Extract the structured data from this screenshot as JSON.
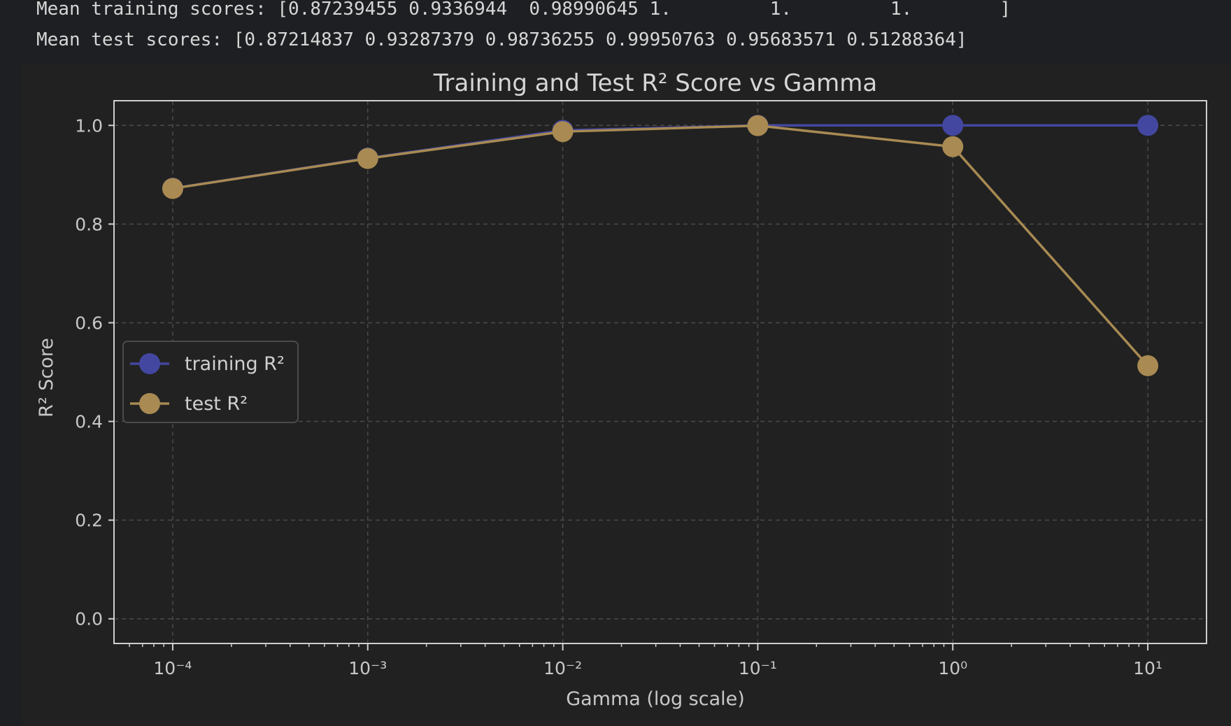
{
  "output": {
    "line1": "Mean training scores: [0.87239455 0.9336944  0.98990645 1.         1.         1.        ]",
    "line2": "Mean test scores: [0.87214837 0.93287379 0.98736255 0.99950763 0.95683571 0.51288364]"
  },
  "chart_data": {
    "type": "line",
    "title": "Training and Test R² Score vs Gamma",
    "xlabel": "Gamma (log scale)",
    "ylabel": "R² Score",
    "x": [
      0.0001,
      0.001,
      0.01,
      0.1,
      1,
      10
    ],
    "xscale": "log",
    "xlim": [
      5e-05,
      20
    ],
    "ylim": [
      -0.05,
      1.05
    ],
    "x_tick_labels": [
      "10⁻⁴",
      "10⁻³",
      "10⁻²",
      "10⁻¹",
      "10⁰",
      "10¹"
    ],
    "y_ticks": [
      0.0,
      0.2,
      0.4,
      0.6,
      0.8,
      1.0
    ],
    "y_tick_labels": [
      "0.0",
      "0.2",
      "0.4",
      "0.6",
      "0.8",
      "1.0"
    ],
    "grid": true,
    "legend_position": "center-left",
    "series": [
      {
        "name": "training R²",
        "color": "#4347a0",
        "values": [
          0.87239455,
          0.9336944,
          0.98990645,
          1.0,
          1.0,
          1.0
        ]
      },
      {
        "name": "test R²",
        "color": "#a88a52",
        "values": [
          0.87214837,
          0.93287379,
          0.98736255,
          0.99950763,
          0.95683571,
          0.51288364
        ]
      }
    ]
  }
}
